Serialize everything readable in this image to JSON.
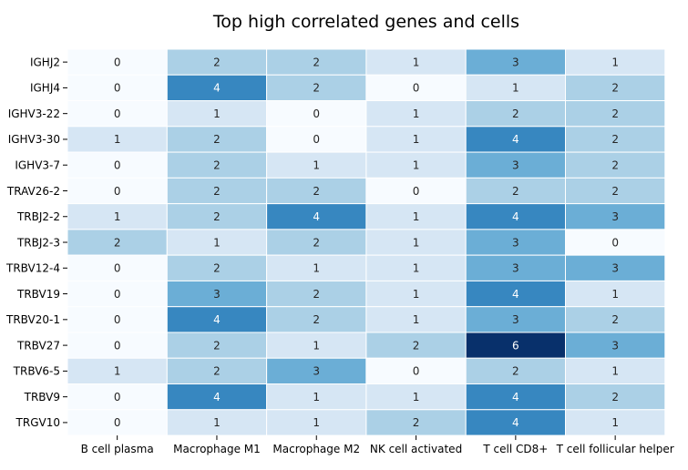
{
  "chart_data": {
    "type": "heatmap",
    "title": "Top high correlated genes and cells",
    "xlabel": "",
    "ylabel": "",
    "columns": [
      "B cell plasma",
      "Macrophage M1",
      "Macrophage M2",
      "NK cell activated",
      "T cell CD8+",
      "T cell follicular helper"
    ],
    "rows": [
      "IGHJ2",
      "IGHJ4",
      "IGHV3-22",
      "IGHV3-30",
      "IGHV3-7",
      "TRAV26-2",
      "TRBJ2-2",
      "TRBJ2-3",
      "TRBV12-4",
      "TRBV19",
      "TRBV20-1",
      "TRBV27",
      "TRBV6-5",
      "TRBV9",
      "TRGV10"
    ],
    "values": [
      [
        0,
        2,
        2,
        1,
        3,
        1
      ],
      [
        0,
        4,
        2,
        0,
        1,
        2
      ],
      [
        0,
        1,
        0,
        1,
        2,
        2
      ],
      [
        1,
        2,
        0,
        1,
        4,
        2
      ],
      [
        0,
        2,
        1,
        1,
        3,
        2
      ],
      [
        0,
        2,
        2,
        0,
        2,
        2
      ],
      [
        1,
        2,
        4,
        1,
        4,
        3
      ],
      [
        2,
        1,
        2,
        1,
        3,
        0
      ],
      [
        0,
        2,
        1,
        1,
        3,
        3
      ],
      [
        0,
        3,
        2,
        1,
        4,
        1
      ],
      [
        0,
        4,
        2,
        1,
        3,
        2
      ],
      [
        0,
        2,
        1,
        2,
        6,
        3
      ],
      [
        1,
        2,
        3,
        0,
        2,
        1
      ],
      [
        0,
        4,
        1,
        1,
        4,
        2
      ],
      [
        0,
        1,
        1,
        2,
        4,
        1
      ]
    ],
    "value_range": [
      0,
      6
    ],
    "colormap": "Blues",
    "annotations": true,
    "grid": false,
    "legend": "none"
  }
}
